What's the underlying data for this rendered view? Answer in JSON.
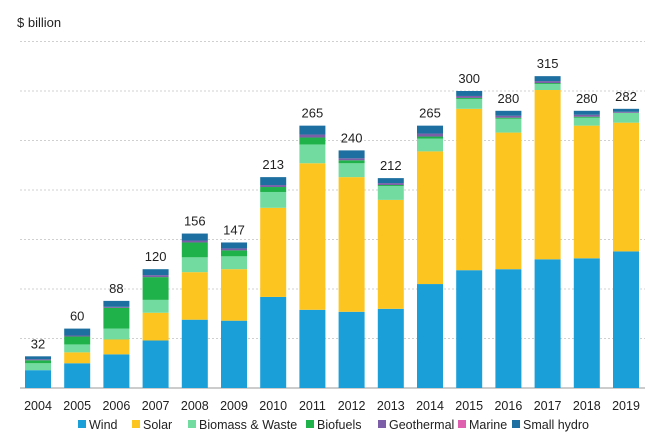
{
  "chart_data": {
    "type": "bar",
    "stacked": true,
    "ylabel": "$ billion",
    "ylim": [
      0,
      350
    ],
    "grid": true,
    "legend_position": "bottom",
    "categories": [
      "2004",
      "2005",
      "2006",
      "2007",
      "2008",
      "2009",
      "2010",
      "2011",
      "2012",
      "2013",
      "2014",
      "2015",
      "2016",
      "2017",
      "2018",
      "2019"
    ],
    "totals": [
      32,
      60,
      88,
      120,
      156,
      147,
      213,
      265,
      240,
      212,
      265,
      300,
      280,
      315,
      280,
      282
    ],
    "series": [
      {
        "name": "Wind",
        "color": "#1a9fd9",
        "values": [
          18,
          25,
          34,
          48,
          69,
          68,
          92,
          79,
          77,
          80,
          105,
          119,
          120,
          130,
          131,
          138
        ]
      },
      {
        "name": "Solar",
        "color": "#fdc520",
        "values": [
          0,
          11,
          15,
          28,
          48,
          52,
          90,
          148,
          136,
          110,
          134,
          163,
          138,
          171,
          134,
          130
        ]
      },
      {
        "name": "Biomass & Waste",
        "color": "#72dca0",
        "values": [
          7,
          8,
          11,
          13,
          15,
          13,
          16,
          19,
          14,
          14,
          13,
          10,
          14,
          6,
          8,
          10
        ]
      },
      {
        "name": "Biofuels",
        "color": "#20b24a",
        "values": [
          3,
          8,
          21,
          23,
          15,
          6,
          5,
          7,
          3,
          1,
          2,
          1,
          1,
          1,
          1,
          0
        ]
      },
      {
        "name": "Geothermal",
        "color": "#7b5ea7",
        "values": [
          1,
          1,
          1,
          2,
          2,
          2,
          2,
          3,
          2,
          2,
          3,
          2,
          2,
          2,
          2,
          1
        ]
      },
      {
        "name": "Marine",
        "color": "#e060b0",
        "values": [
          0,
          0,
          0,
          0,
          0,
          0,
          0,
          0,
          0,
          0,
          0,
          0,
          0,
          0,
          0,
          0
        ]
      },
      {
        "name": "Small hydro",
        "color": "#1c6fa0",
        "values": [
          3,
          7,
          6,
          6,
          7,
          6,
          8,
          9,
          8,
          5,
          8,
          5,
          5,
          5,
          4,
          3
        ]
      }
    ]
  }
}
